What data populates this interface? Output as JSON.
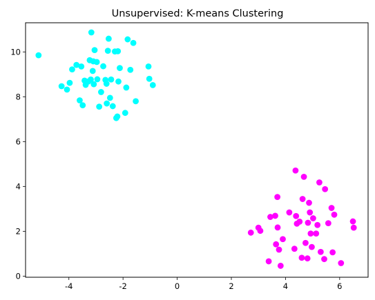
{
  "chart_data": {
    "type": "scatter",
    "title": "Unsupervised: K-means Clustering",
    "xlabel": "",
    "ylabel": "",
    "xlim": [
      -5.6,
      7.05
    ],
    "ylim": [
      -0.05,
      11.3
    ],
    "xticks": [
      -4,
      -2,
      0,
      2,
      4,
      6
    ],
    "yticks": [
      0,
      2,
      4,
      6,
      8,
      10
    ],
    "grid": false,
    "series": [
      {
        "color": "#00ffff",
        "x": [
          -5.12,
          -4.27,
          -4.07,
          -3.97,
          -3.88,
          -3.72,
          -3.6,
          -3.54,
          -3.49,
          -3.42,
          -3.38,
          -3.28,
          -3.23,
          -3.19,
          -3.17,
          -3.12,
          -3.1,
          -3.08,
          -3.05,
          -2.97,
          -2.95,
          -2.88,
          -2.81,
          -2.73,
          -2.65,
          -2.61,
          -2.6,
          -2.56,
          -2.53,
          -2.48,
          -2.44,
          -2.38,
          -2.3,
          -2.25,
          -2.21,
          -2.19,
          -2.17,
          -2.12,
          -1.92,
          -1.88,
          -1.83,
          -1.73,
          -1.62,
          -1.53,
          -1.06,
          -1.03,
          -0.9
        ],
        "y": [
          9.85,
          8.47,
          8.32,
          8.62,
          9.22,
          9.42,
          7.84,
          9.35,
          7.62,
          8.72,
          8.53,
          8.68,
          9.63,
          8.77,
          10.87,
          9.15,
          9.58,
          8.56,
          10.08,
          9.55,
          8.78,
          7.56,
          8.21,
          9.36,
          8.75,
          8.58,
          7.7,
          10.05,
          10.59,
          7.95,
          8.77,
          7.58,
          10.02,
          7.05,
          7.12,
          10.03,
          8.68,
          9.28,
          7.28,
          8.41,
          10.56,
          9.2,
          10.4,
          7.8,
          9.35,
          8.8,
          8.52
        ],
        "y_extra_note": ""
      },
      {
        "color": "#ff00ff",
        "x": [
          2.72,
          3.0,
          3.07,
          3.38,
          3.44,
          3.62,
          3.65,
          3.7,
          3.71,
          3.76,
          3.82,
          3.9,
          4.14,
          4.33,
          4.37,
          4.39,
          4.42,
          4.52,
          4.6,
          4.63,
          4.68,
          4.74,
          4.81,
          4.83,
          4.87,
          4.9,
          4.93,
          4.97,
          5.02,
          5.13,
          5.18,
          5.25,
          5.3,
          5.43,
          5.46,
          5.58,
          5.7,
          5.74,
          5.8,
          6.05,
          6.49,
          6.52
        ],
        "y": [
          1.94,
          2.16,
          2.02,
          0.66,
          2.64,
          2.69,
          1.42,
          3.53,
          2.17,
          1.18,
          0.46,
          1.65,
          2.84,
          1.22,
          4.71,
          2.68,
          2.34,
          2.43,
          0.82,
          3.44,
          4.43,
          1.48,
          0.79,
          2.38,
          3.27,
          2.84,
          1.9,
          1.3,
          2.58,
          1.9,
          2.28,
          4.18,
          1.08,
          0.76,
          3.88,
          2.36,
          3.04,
          1.06,
          2.74,
          0.58,
          2.44,
          2.16
        ],
        "y_extra_note": ""
      }
    ]
  }
}
